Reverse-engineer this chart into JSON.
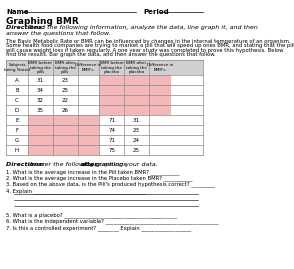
{
  "title_main": "Graphing BMR",
  "directions1_bold": "Directions: ",
  "directions1_rest": "Read the following information, analyze the data, line graph it, and then\nanswer the questions that follow.",
  "body_text": "The Basic Metabolic Rate or BMR can be influenced by changes in the internal temperature of an organism.\nSome health food companies are trying to market a pill that will speed up ones BMR, and stating that the pill\nwill cause weight loss if taken regularly. A one year study was completed to prove this hypothesis. Below\nfind the results. Bar graph the data, and then answer the questions that follow.",
  "table_headers": [
    "Subjects\nbeing Tested",
    "BMR before\ntaking the\npills",
    "BMR after\ntaking the\npills",
    "Difference in\nBMR's",
    "BMR before\ntaking the\nplacebo",
    "BMR after\ntaking the\nplacebo",
    "Difference in\nBMR's"
  ],
  "pill_subjects": [
    "A",
    "B",
    "C",
    "D"
  ],
  "pill_before": [
    "31",
    "34",
    "32",
    "35"
  ],
  "pill_after": [
    "23",
    "25",
    "22",
    "26"
  ],
  "placebo_subjects": [
    "E",
    "F",
    "G",
    "H"
  ],
  "placebo_before": [
    "71",
    "74",
    "71",
    "75"
  ],
  "placebo_after": [
    "31",
    "23",
    "24",
    "25"
  ],
  "questions": [
    "1. What is the average increase in the Pill taken BMR? ___________",
    "2. What is the average increase in the Placebo taken BMR? ___________",
    "3. Based on the above data, is the Pill's produced hypothesis correct? _________",
    "4. Explain ___________________________________________",
    "BLANK",
    "BLANK",
    "BLANK",
    "5. What is a placebo? ___________________________________________",
    "6. What is the independent variable? ___________________________________________",
    "7. Is this a controlled experiment? ________ Explain ___________________"
  ],
  "bg_color": "#ffffff",
  "pink_color": "#f5b8b8",
  "header_bg": "#d0d0d0",
  "line_color": "#888888"
}
